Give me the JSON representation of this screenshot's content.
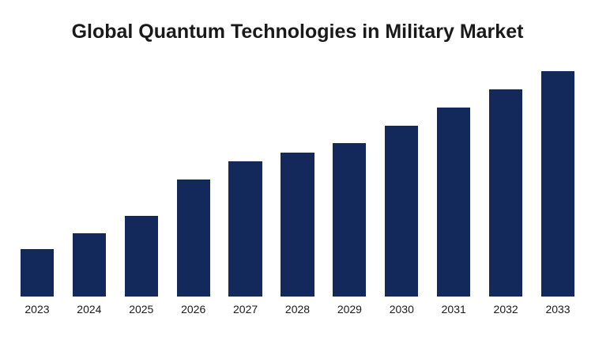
{
  "colors": {
    "bar": "#13295c",
    "background": "#ffffff",
    "text": "#1a1a1a"
  },
  "chart_data": {
    "type": "bar",
    "title": "Global Quantum Technologies in Military Market",
    "categories": [
      "2023",
      "2024",
      "2025",
      "2026",
      "2027",
      "2028",
      "2029",
      "2030",
      "2031",
      "2032",
      "2033"
    ],
    "values": [
      21,
      28,
      36,
      52,
      60,
      64,
      68,
      76,
      84,
      92,
      100
    ],
    "xlabel": "",
    "ylabel": "",
    "ylim": [
      0,
      100
    ],
    "grid": false,
    "legend": "none",
    "axes_shown": false,
    "units": "relative bar height (% of tallest bar; no numeric axis or data labels are shown in the chart)"
  }
}
